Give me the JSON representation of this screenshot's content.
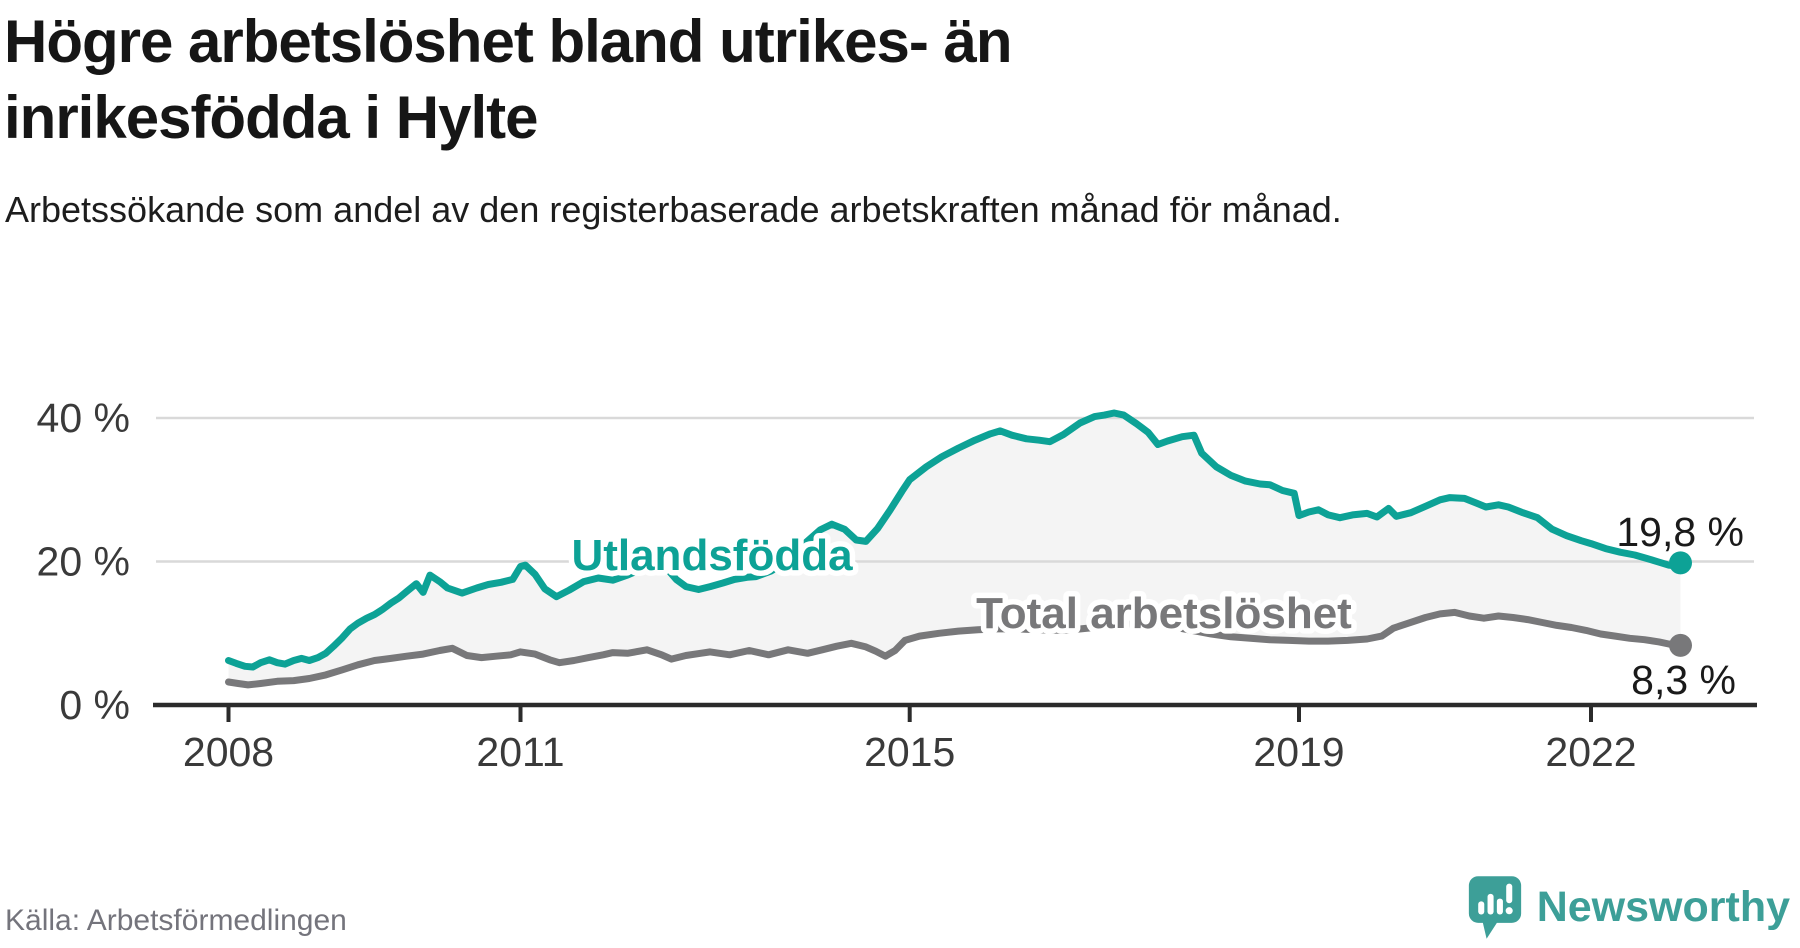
{
  "header": {
    "title": "Högre arbetslöshet bland utrikes- än inrikesfödda i Hylte",
    "subtitle": "Arbetssökande som andel av den registerbaserade arbetskraften månad för månad."
  },
  "source": {
    "label": "Källa: Arbetsförmedlingen"
  },
  "branding": {
    "logo_text": "Newsworthy",
    "logo_icon": "newsworthy-speech-bubble-chart-icon",
    "logo_color": "#3d9f98"
  },
  "colors": {
    "accent_teal": "#0da296",
    "series_gray": "#78787a",
    "band_fill": "#f4f4f4",
    "grid": "#d9d9d9",
    "axis": "#2b2b2b",
    "tick_text": "#3a3a3a",
    "annotation_text": "#1a1a1a"
  },
  "chart_data": {
    "type": "line",
    "title": "",
    "xlabel": "",
    "ylabel": "",
    "grid": true,
    "band_fill": "#f4f4f4",
    "x_axis": {
      "ticks": [
        2008,
        2011,
        2015,
        2019,
        2022
      ],
      "range": [
        2008,
        2023
      ]
    },
    "y_axis": {
      "ticks": [
        0,
        20,
        40
      ],
      "tick_suffix": " %",
      "range": [
        0,
        42
      ]
    },
    "series": [
      {
        "name": "Utlandsfödda",
        "color": "#0da296",
        "end_label": "19,8 %",
        "end_value": 19.8,
        "points": [
          [
            2008.0,
            6.2
          ],
          [
            2008.08,
            5.8
          ],
          [
            2008.17,
            5.4
          ],
          [
            2008.25,
            5.3
          ],
          [
            2008.33,
            5.9
          ],
          [
            2008.42,
            6.3
          ],
          [
            2008.5,
            5.9
          ],
          [
            2008.58,
            5.7
          ],
          [
            2008.67,
            6.2
          ],
          [
            2008.75,
            6.5
          ],
          [
            2008.83,
            6.2
          ],
          [
            2008.92,
            6.6
          ],
          [
            2009.0,
            7.2
          ],
          [
            2009.08,
            8.2
          ],
          [
            2009.17,
            9.4
          ],
          [
            2009.25,
            10.6
          ],
          [
            2009.33,
            11.4
          ],
          [
            2009.42,
            12.1
          ],
          [
            2009.5,
            12.6
          ],
          [
            2009.58,
            13.3
          ],
          [
            2009.67,
            14.2
          ],
          [
            2009.75,
            14.9
          ],
          [
            2009.83,
            15.8
          ],
          [
            2009.93,
            16.9
          ],
          [
            2010.0,
            15.7
          ],
          [
            2010.07,
            18.1
          ],
          [
            2010.17,
            17.2
          ],
          [
            2010.25,
            16.3
          ],
          [
            2010.4,
            15.6
          ],
          [
            2010.55,
            16.3
          ],
          [
            2010.67,
            16.8
          ],
          [
            2010.8,
            17.1
          ],
          [
            2010.92,
            17.5
          ],
          [
            2011.0,
            19.3
          ],
          [
            2011.05,
            19.5
          ],
          [
            2011.15,
            18.2
          ],
          [
            2011.25,
            16.2
          ],
          [
            2011.37,
            15.1
          ],
          [
            2011.5,
            16.0
          ],
          [
            2011.65,
            17.2
          ],
          [
            2011.8,
            17.7
          ],
          [
            2011.95,
            17.4
          ],
          [
            2012.1,
            18.1
          ],
          [
            2012.25,
            19.0
          ],
          [
            2012.4,
            19.6
          ],
          [
            2012.5,
            19.1
          ],
          [
            2012.6,
            17.5
          ],
          [
            2012.7,
            16.5
          ],
          [
            2012.83,
            16.1
          ],
          [
            2012.95,
            16.5
          ],
          [
            2013.08,
            17.0
          ],
          [
            2013.2,
            17.5
          ],
          [
            2013.33,
            17.8
          ],
          [
            2013.42,
            17.9
          ],
          [
            2013.58,
            18.7
          ],
          [
            2013.75,
            20.1
          ],
          [
            2013.92,
            22.5
          ],
          [
            2014.08,
            24.4
          ],
          [
            2014.2,
            25.2
          ],
          [
            2014.33,
            24.5
          ],
          [
            2014.45,
            23.0
          ],
          [
            2014.55,
            22.8
          ],
          [
            2014.67,
            24.6
          ],
          [
            2014.8,
            27.2
          ],
          [
            2014.92,
            29.8
          ],
          [
            2015.0,
            31.4
          ],
          [
            2015.17,
            33.2
          ],
          [
            2015.33,
            34.6
          ],
          [
            2015.5,
            35.8
          ],
          [
            2015.67,
            36.9
          ],
          [
            2015.83,
            37.8
          ],
          [
            2015.93,
            38.2
          ],
          [
            2016.05,
            37.6
          ],
          [
            2016.2,
            37.1
          ],
          [
            2016.33,
            36.9
          ],
          [
            2016.44,
            36.7
          ],
          [
            2016.58,
            37.7
          ],
          [
            2016.75,
            39.3
          ],
          [
            2016.9,
            40.2
          ],
          [
            2017.0,
            40.4
          ],
          [
            2017.1,
            40.7
          ],
          [
            2017.2,
            40.4
          ],
          [
            2017.33,
            39.2
          ],
          [
            2017.45,
            38.0
          ],
          [
            2017.55,
            36.3
          ],
          [
            2017.65,
            36.8
          ],
          [
            2017.8,
            37.4
          ],
          [
            2017.92,
            37.6
          ],
          [
            2018.0,
            35.1
          ],
          [
            2018.15,
            33.2
          ],
          [
            2018.3,
            32.0
          ],
          [
            2018.45,
            31.2
          ],
          [
            2018.6,
            30.8
          ],
          [
            2018.7,
            30.7
          ],
          [
            2018.83,
            29.9
          ],
          [
            2018.95,
            29.5
          ],
          [
            2019.0,
            26.4
          ],
          [
            2019.1,
            26.9
          ],
          [
            2019.2,
            27.2
          ],
          [
            2019.3,
            26.5
          ],
          [
            2019.42,
            26.1
          ],
          [
            2019.55,
            26.5
          ],
          [
            2019.7,
            26.7
          ],
          [
            2019.8,
            26.2
          ],
          [
            2019.92,
            27.4
          ],
          [
            2020.0,
            26.3
          ],
          [
            2020.15,
            26.8
          ],
          [
            2020.3,
            27.7
          ],
          [
            2020.45,
            28.6
          ],
          [
            2020.55,
            28.9
          ],
          [
            2020.7,
            28.8
          ],
          [
            2020.83,
            28.1
          ],
          [
            2020.92,
            27.6
          ],
          [
            2021.05,
            27.9
          ],
          [
            2021.15,
            27.6
          ],
          [
            2021.3,
            26.8
          ],
          [
            2021.45,
            26.1
          ],
          [
            2021.6,
            24.5
          ],
          [
            2021.75,
            23.6
          ],
          [
            2021.9,
            22.9
          ],
          [
            2022.0,
            22.5
          ],
          [
            2022.15,
            21.8
          ],
          [
            2022.3,
            21.3
          ],
          [
            2022.45,
            20.9
          ],
          [
            2022.58,
            20.4
          ],
          [
            2022.7,
            19.9
          ],
          [
            2022.8,
            19.5
          ],
          [
            2022.87,
            19.4
          ],
          [
            2022.92,
            19.8
          ]
        ]
      },
      {
        "name": "Total arbetslöshet",
        "color": "#78787a",
        "end_label": "8,3 %",
        "end_value": 8.3,
        "points": [
          [
            2008.0,
            3.2
          ],
          [
            2008.1,
            3.0
          ],
          [
            2008.2,
            2.8
          ],
          [
            2008.33,
            3.0
          ],
          [
            2008.5,
            3.3
          ],
          [
            2008.67,
            3.4
          ],
          [
            2008.83,
            3.7
          ],
          [
            2009.0,
            4.2
          ],
          [
            2009.17,
            4.9
          ],
          [
            2009.33,
            5.6
          ],
          [
            2009.5,
            6.2
          ],
          [
            2009.67,
            6.5
          ],
          [
            2009.83,
            6.8
          ],
          [
            2010.0,
            7.1
          ],
          [
            2010.17,
            7.6
          ],
          [
            2010.3,
            7.9
          ],
          [
            2010.45,
            6.9
          ],
          [
            2010.6,
            6.6
          ],
          [
            2010.75,
            6.8
          ],
          [
            2010.9,
            7.0
          ],
          [
            2011.0,
            7.4
          ],
          [
            2011.15,
            7.1
          ],
          [
            2011.3,
            6.3
          ],
          [
            2011.4,
            5.9
          ],
          [
            2011.55,
            6.2
          ],
          [
            2011.7,
            6.6
          ],
          [
            2011.85,
            7.0
          ],
          [
            2011.95,
            7.3
          ],
          [
            2012.1,
            7.2
          ],
          [
            2012.3,
            7.7
          ],
          [
            2012.45,
            7.0
          ],
          [
            2012.55,
            6.4
          ],
          [
            2012.7,
            6.9
          ],
          [
            2012.85,
            7.2
          ],
          [
            2012.95,
            7.4
          ],
          [
            2013.15,
            7.0
          ],
          [
            2013.35,
            7.6
          ],
          [
            2013.55,
            7.0
          ],
          [
            2013.75,
            7.7
          ],
          [
            2013.95,
            7.2
          ],
          [
            2014.1,
            7.7
          ],
          [
            2014.25,
            8.2
          ],
          [
            2014.4,
            8.6
          ],
          [
            2014.55,
            8.1
          ],
          [
            2014.65,
            7.5
          ],
          [
            2014.75,
            6.8
          ],
          [
            2014.85,
            7.6
          ],
          [
            2014.95,
            9.0
          ],
          [
            2015.1,
            9.6
          ],
          [
            2015.3,
            10.0
          ],
          [
            2015.5,
            10.3
          ],
          [
            2015.7,
            10.5
          ],
          [
            2015.9,
            10.6
          ],
          [
            2016.1,
            10.6
          ],
          [
            2016.3,
            10.5
          ],
          [
            2016.6,
            10.4
          ],
          [
            2016.9,
            10.8
          ],
          [
            2017.1,
            11.1
          ],
          [
            2017.3,
            11.3
          ],
          [
            2017.5,
            11.2
          ],
          [
            2017.7,
            10.9
          ],
          [
            2017.9,
            10.4
          ],
          [
            2018.1,
            9.9
          ],
          [
            2018.3,
            9.5
          ],
          [
            2018.5,
            9.3
          ],
          [
            2018.7,
            9.1
          ],
          [
            2018.9,
            9.0
          ],
          [
            2019.1,
            8.9
          ],
          [
            2019.3,
            8.9
          ],
          [
            2019.5,
            9.0
          ],
          [
            2019.7,
            9.2
          ],
          [
            2019.85,
            9.6
          ],
          [
            2019.97,
            10.7
          ],
          [
            2020.1,
            11.3
          ],
          [
            2020.3,
            12.2
          ],
          [
            2020.45,
            12.7
          ],
          [
            2020.6,
            12.9
          ],
          [
            2020.75,
            12.4
          ],
          [
            2020.9,
            12.1
          ],
          [
            2021.05,
            12.4
          ],
          [
            2021.2,
            12.2
          ],
          [
            2021.35,
            11.9
          ],
          [
            2021.5,
            11.5
          ],
          [
            2021.65,
            11.1
          ],
          [
            2021.8,
            10.8
          ],
          [
            2021.95,
            10.4
          ],
          [
            2022.1,
            9.9
          ],
          [
            2022.25,
            9.6
          ],
          [
            2022.4,
            9.3
          ],
          [
            2022.55,
            9.1
          ],
          [
            2022.7,
            8.8
          ],
          [
            2022.8,
            8.5
          ],
          [
            2022.92,
            8.3
          ]
        ]
      }
    ]
  }
}
